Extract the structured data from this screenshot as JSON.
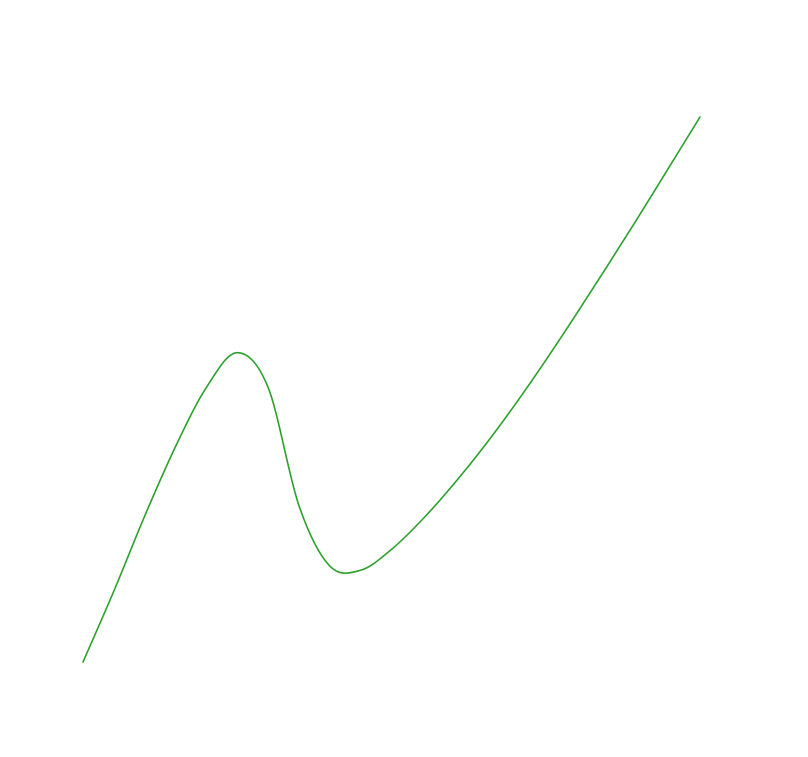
{
  "chart_data": {
    "type": "line",
    "title": "",
    "xlabel": "",
    "ylabel": "",
    "grid": false,
    "axes_visible": false,
    "legend": "none",
    "xlim": [
      0,
      10
    ],
    "ylim": [
      0,
      10
    ],
    "series": [
      {
        "color": "#2ca02c",
        "x": [
          0.0,
          0.5,
          1.0,
          1.5,
          2.0,
          2.5,
          3.0,
          3.5,
          4.0,
          4.5,
          5.0,
          5.5,
          6.0,
          6.5,
          7.0,
          7.5,
          8.0,
          8.5,
          9.0,
          9.5,
          10.0
        ],
        "y": [
          0.0,
          1.02,
          2.1,
          3.1,
          3.95,
          4.45,
          3.95,
          2.25,
          1.38,
          1.32,
          1.62,
          2.05,
          2.55,
          3.1,
          3.7,
          4.34,
          5.01,
          5.7,
          6.4,
          7.12,
          7.84
        ]
      }
    ]
  }
}
